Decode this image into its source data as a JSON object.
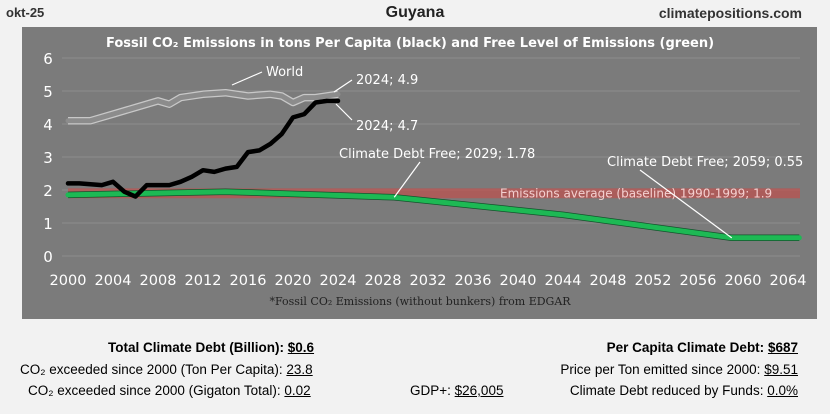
{
  "header": {
    "date": "okt-25",
    "country": "Guyana",
    "site": "climatepositions.com"
  },
  "chart_data": {
    "type": "line",
    "title": "Fossil CO₂ Emissions in tons Per Capita (black) and Free Level of Emissions (green)",
    "footnote": "*Fossil CO₂ Emissions (without bunkers) from EDGAR",
    "ylim": [
      0,
      6
    ],
    "yticks": [
      "0",
      "1",
      "2",
      "3",
      "4",
      "5",
      "6"
    ],
    "xlim": [
      2000,
      2066
    ],
    "xticks": [
      "2000",
      "2004",
      "2008",
      "2012",
      "2016",
      "2020",
      "2024",
      "2028",
      "2032",
      "2036",
      "2040",
      "2044",
      "2048",
      "2052",
      "2056",
      "2060",
      "2064"
    ],
    "series": [
      {
        "name": "World",
        "color": "#8c8c8c",
        "points": [
          [
            2000,
            4.1
          ],
          [
            2002,
            4.1
          ],
          [
            2004,
            4.3
          ],
          [
            2006,
            4.5
          ],
          [
            2008,
            4.7
          ],
          [
            2009,
            4.6
          ],
          [
            2010,
            4.8
          ],
          [
            2012,
            4.9
          ],
          [
            2014,
            4.95
          ],
          [
            2016,
            4.85
          ],
          [
            2018,
            4.9
          ],
          [
            2019,
            4.85
          ],
          [
            2020,
            4.65
          ],
          [
            2021,
            4.8
          ],
          [
            2022,
            4.8
          ],
          [
            2024,
            4.9
          ]
        ]
      },
      {
        "name": "Guyana",
        "color": "#000000",
        "points": [
          [
            2000,
            2.2
          ],
          [
            2001,
            2.2
          ],
          [
            2003,
            2.15
          ],
          [
            2004,
            2.25
          ],
          [
            2005,
            1.95
          ],
          [
            2006,
            1.8
          ],
          [
            2007,
            2.15
          ],
          [
            2009,
            2.15
          ],
          [
            2010,
            2.25
          ],
          [
            2011,
            2.4
          ],
          [
            2012,
            2.6
          ],
          [
            2013,
            2.55
          ],
          [
            2014,
            2.65
          ],
          [
            2015,
            2.7
          ],
          [
            2016,
            3.15
          ],
          [
            2017,
            3.2
          ],
          [
            2018,
            3.4
          ],
          [
            2019,
            3.7
          ],
          [
            2020,
            4.2
          ],
          [
            2021,
            4.3
          ],
          [
            2022,
            4.65
          ],
          [
            2023,
            4.7
          ],
          [
            2024,
            4.7
          ]
        ]
      },
      {
        "name": "Free Level of Emissions",
        "color": "#1db954",
        "points": [
          [
            2000,
            1.85
          ],
          [
            2014,
            1.95
          ],
          [
            2029,
            1.78
          ],
          [
            2044,
            1.25
          ],
          [
            2059,
            0.55
          ],
          [
            2065,
            0.55
          ]
        ]
      }
    ],
    "baseline_band": {
      "label": "Emissions average (baseline) 1990-1999; 1.9",
      "value": 1.9,
      "range": [
        1.75,
        2.05
      ],
      "color": "#c0504d"
    },
    "annotations": {
      "world_label": "World",
      "world_end": "2024; 4.9",
      "guyana_end": "2024; 4.7",
      "free_2029": "Climate Debt Free; 2029; 1.78",
      "free_2059": "Climate Debt Free; 2059; 0.55"
    }
  },
  "stats": {
    "total_debt_label": "Total Climate Debt (Billion):",
    "total_debt_value": "$0.6",
    "co2_exceeded_tpc_label": "CO₂ exceeded since 2000 (Ton Per Capita):",
    "co2_exceeded_tpc_value": "23.8",
    "co2_exceeded_gt_label": "CO₂ exceeded since 2000 (Gigaton Total):",
    "co2_exceeded_gt_value": "0.02",
    "gdp_label": "GDP+:",
    "gdp_value": "$26,005",
    "per_capita_debt_label": "Per Capita Climate Debt:",
    "per_capita_debt_value": "$687",
    "price_per_ton_label": "Price per Ton emitted since 2000:",
    "price_per_ton_value": "$9.51",
    "reduced_by_funds_label": "Climate Debt reduced by Funds:",
    "reduced_by_funds_value": "0.0%"
  }
}
